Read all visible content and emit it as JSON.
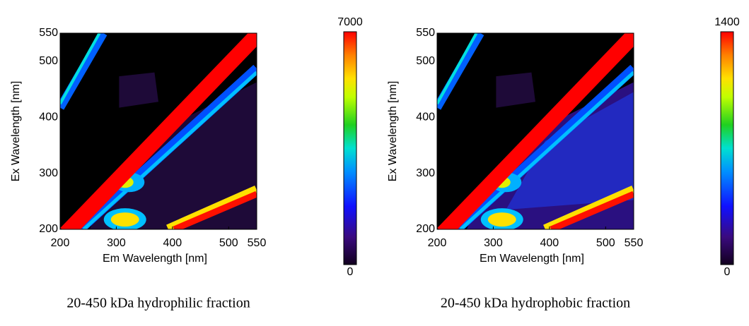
{
  "chart_data": [
    {
      "type": "heatmap",
      "xlabel": "Em Wavelength [nm]",
      "ylabel": "Ex Wavelength [nm]",
      "xlim": [
        200,
        550
      ],
      "ylim": [
        200,
        550
      ],
      "xticks": [
        200,
        300,
        400,
        500,
        550
      ],
      "yticks": [
        200,
        300,
        400,
        500,
        550
      ],
      "colorbar": {
        "lim": [
          0,
          7000
        ],
        "ticks": [
          0,
          7000
        ]
      },
      "caption": "20-450 kDa hydrophilic fraction"
    },
    {
      "type": "heatmap",
      "xlabel": "Em Wavelength [nm]",
      "ylabel": "Ex Wavelength [nm]",
      "xlim": [
        200,
        550
      ],
      "ylim": [
        200,
        550
      ],
      "xticks": [
        200,
        300,
        400,
        500,
        550
      ],
      "yticks": [
        200,
        300,
        400,
        500,
        550
      ],
      "colorbar": {
        "lim": [
          0,
          1400
        ],
        "ticks": [
          0,
          1400
        ]
      },
      "caption": "20-450 kDa hydrophobic fraction"
    }
  ]
}
